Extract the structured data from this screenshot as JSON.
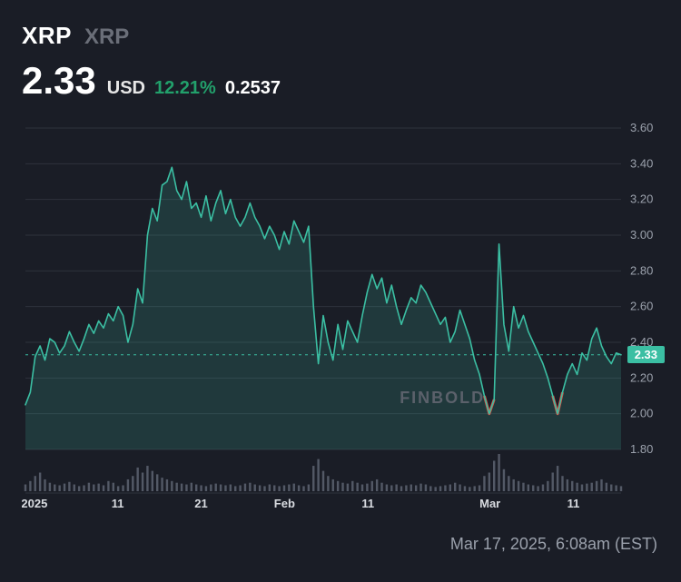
{
  "header": {
    "symbol_primary": "XRP",
    "symbol_secondary": "XRP",
    "price": "2.33",
    "currency": "USD",
    "pct_change": "12.21%",
    "pct_color": "#22a06b",
    "abs_change": "0.2537"
  },
  "chart": {
    "type": "line",
    "background_color": "#1a1d26",
    "grid_color": "#2e323c",
    "line_color": "#3bbfa3",
    "area_color": "rgba(59,191,163,0.18)",
    "red_accent_color": "#e34b3f",
    "current_line_color": "#3bbfa3",
    "watermark": "FINBOLD",
    "ylim": [
      1.8,
      3.6
    ],
    "yticks": [
      1.8,
      2.0,
      2.2,
      2.4,
      2.6,
      2.8,
      3.0,
      3.2,
      3.4,
      3.6
    ],
    "current_value": 2.33,
    "xticks": [
      {
        "label": "2025",
        "pos": 0.015
      },
      {
        "label": "11",
        "pos": 0.155
      },
      {
        "label": "21",
        "pos": 0.295
      },
      {
        "label": "Feb",
        "pos": 0.435
      },
      {
        "label": "11",
        "pos": 0.575
      },
      {
        "label": "Mar",
        "pos": 0.78
      },
      {
        "label": "11",
        "pos": 0.92
      }
    ],
    "series": [
      2.05,
      2.12,
      2.32,
      2.38,
      2.3,
      2.42,
      2.4,
      2.34,
      2.38,
      2.46,
      2.4,
      2.35,
      2.42,
      2.5,
      2.45,
      2.52,
      2.48,
      2.56,
      2.52,
      2.6,
      2.55,
      2.4,
      2.5,
      2.7,
      2.62,
      3.0,
      3.15,
      3.08,
      3.28,
      3.3,
      3.38,
      3.25,
      3.2,
      3.3,
      3.15,
      3.18,
      3.1,
      3.22,
      3.08,
      3.18,
      3.25,
      3.12,
      3.2,
      3.1,
      3.05,
      3.1,
      3.18,
      3.1,
      3.05,
      2.98,
      3.05,
      3.0,
      2.92,
      3.02,
      2.95,
      3.08,
      3.02,
      2.96,
      3.05,
      2.6,
      2.28,
      2.55,
      2.4,
      2.3,
      2.5,
      2.36,
      2.52,
      2.46,
      2.4,
      2.55,
      2.68,
      2.78,
      2.7,
      2.76,
      2.62,
      2.72,
      2.6,
      2.5,
      2.58,
      2.65,
      2.62,
      2.72,
      2.68,
      2.62,
      2.56,
      2.5,
      2.54,
      2.4,
      2.46,
      2.58,
      2.5,
      2.42,
      2.3,
      2.22,
      2.1,
      2.0,
      2.08,
      2.95,
      2.5,
      2.35,
      2.6,
      2.48,
      2.55,
      2.46,
      2.4,
      2.34,
      2.28,
      2.2,
      2.1,
      2.0,
      2.12,
      2.22,
      2.28,
      2.22,
      2.34,
      2.3,
      2.42,
      2.48,
      2.38,
      2.32,
      2.28,
      2.34,
      2.33
    ],
    "volume_color": "#5e6472",
    "volumes": [
      8,
      12,
      18,
      22,
      14,
      10,
      8,
      7,
      9,
      11,
      8,
      6,
      7,
      10,
      8,
      9,
      7,
      12,
      10,
      6,
      7,
      14,
      18,
      28,
      22,
      30,
      24,
      20,
      16,
      14,
      12,
      10,
      9,
      8,
      10,
      8,
      7,
      6,
      8,
      9,
      8,
      7,
      8,
      6,
      7,
      9,
      10,
      8,
      7,
      6,
      8,
      7,
      6,
      7,
      8,
      9,
      7,
      6,
      8,
      30,
      38,
      24,
      18,
      14,
      12,
      10,
      9,
      12,
      10,
      8,
      9,
      12,
      14,
      10,
      8,
      7,
      8,
      6,
      7,
      8,
      7,
      9,
      8,
      6,
      5,
      6,
      7,
      8,
      10,
      8,
      6,
      5,
      6,
      7,
      18,
      22,
      36,
      44,
      26,
      18,
      14,
      12,
      10,
      8,
      7,
      6,
      8,
      12,
      22,
      30,
      18,
      14,
      12,
      10,
      8,
      9,
      10,
      12,
      14,
      10,
      8,
      7,
      6
    ],
    "red_dips": [
      {
        "start": 94,
        "end": 96
      },
      {
        "start": 108,
        "end": 110
      }
    ]
  },
  "timestamp": "Mar 17, 2025, 6:08am (EST)"
}
